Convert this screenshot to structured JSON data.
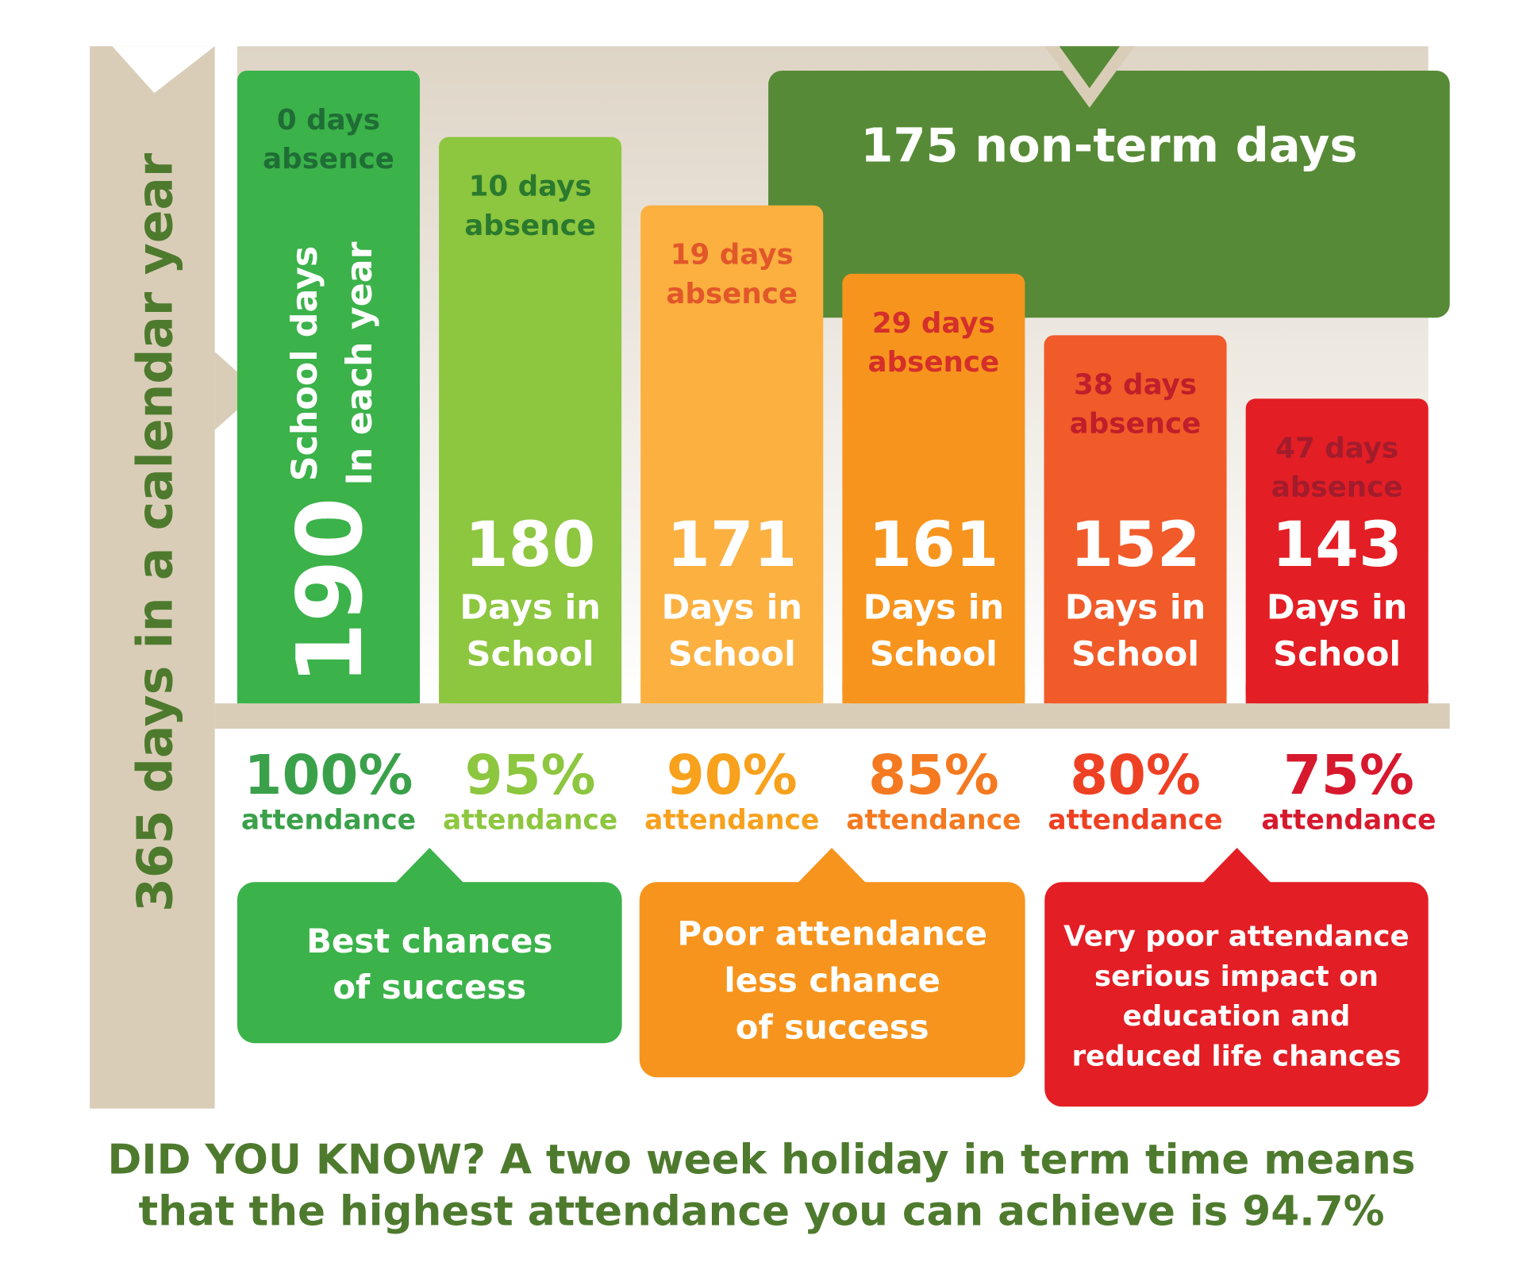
{
  "side_label": "365 days in a calendar year",
  "non_term": "175 non-term days",
  "columns": [
    {
      "absence": [
        "0 days",
        "absence"
      ],
      "days": "190",
      "caption": [
        "School days",
        "In each year"
      ],
      "attendance": "100%",
      "attendance_label": "attendance"
    },
    {
      "absence": [
        "10 days",
        "absence"
      ],
      "days": "180",
      "caption": [
        "Days in",
        "School"
      ],
      "attendance": "95%",
      "attendance_label": "attendance"
    },
    {
      "absence": [
        "19 days",
        "absence"
      ],
      "days": "171",
      "caption": [
        "Days in",
        "School"
      ],
      "attendance": "90%",
      "attendance_label": "attendance"
    },
    {
      "absence": [
        "29 days",
        "absence"
      ],
      "days": "161",
      "caption": [
        "Days in",
        "School"
      ],
      "attendance": "85%",
      "attendance_label": "attendance"
    },
    {
      "absence": [
        "38 days",
        "absence"
      ],
      "days": "152",
      "caption": [
        "Days in",
        "School"
      ],
      "attendance": "80%",
      "attendance_label": "attendance"
    },
    {
      "absence": [
        "47 days",
        "absence"
      ],
      "days": "143",
      "caption": [
        "Days in",
        "School"
      ],
      "attendance": "75%",
      "attendance_label": "attendance"
    }
  ],
  "notes": [
    [
      "Best chances",
      "of success"
    ],
    [
      "Poor attendance",
      "less chance",
      "of success"
    ],
    [
      "Very poor attendance",
      "serious impact on",
      "education and",
      "reduced life chances"
    ]
  ],
  "footer": [
    "DID YOU KNOW? A two week holiday in term time means",
    "that the highest attendance you can achieve is 94.7%"
  ]
}
